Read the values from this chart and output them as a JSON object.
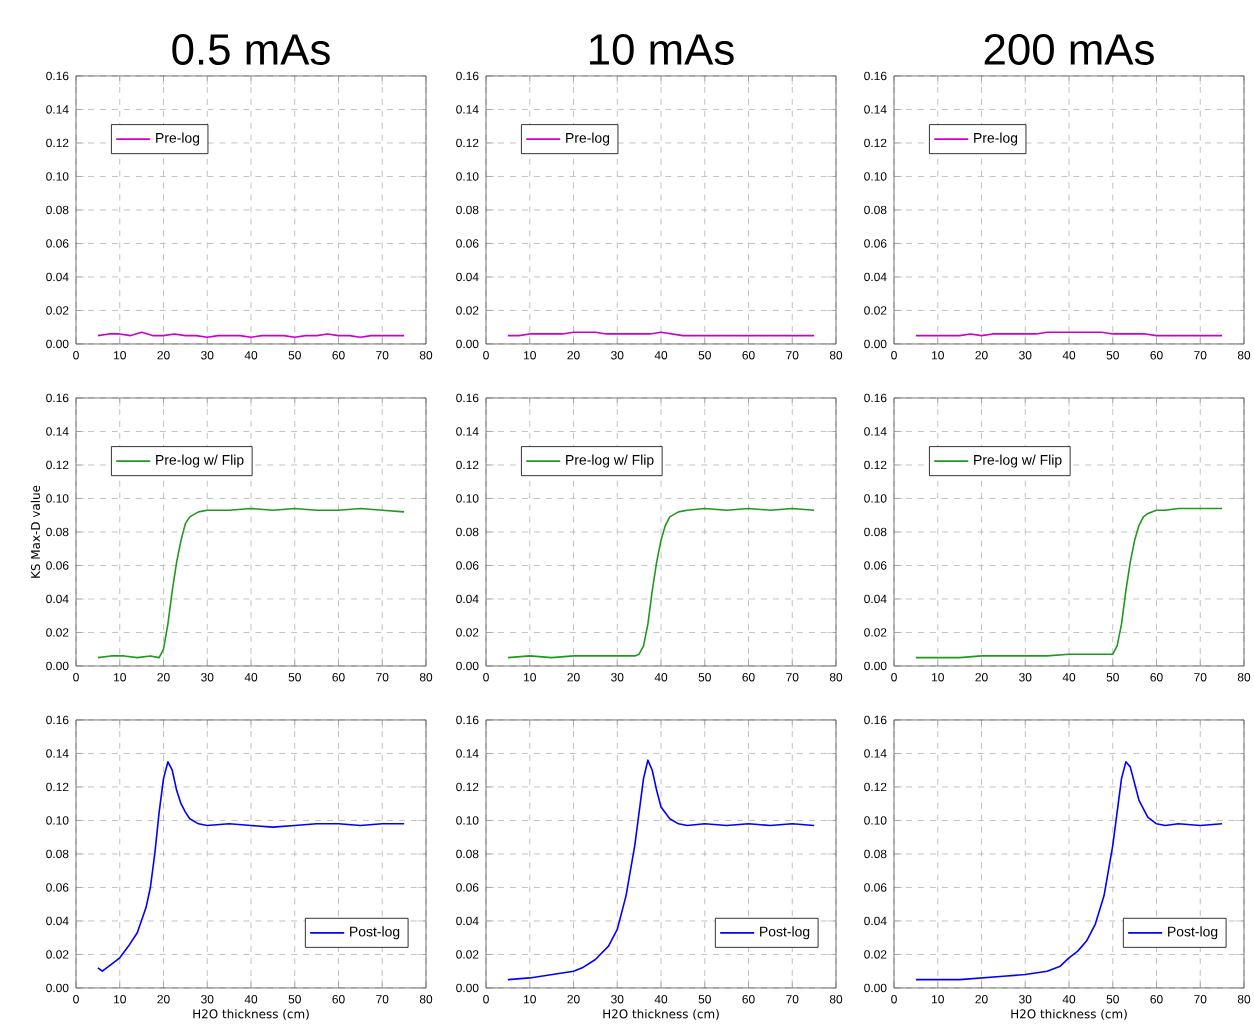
{
  "chart_data": [
    {
      "type": "line",
      "title": "0.5 mAs",
      "x": [
        5,
        7.5,
        10,
        12.5,
        15,
        17.5,
        20,
        22.5,
        25,
        27.5,
        30,
        32.5,
        35,
        37.5,
        40,
        42.5,
        45,
        47.5,
        50,
        52.5,
        55,
        57.5,
        60,
        62.5,
        65,
        67.5,
        70,
        72.5,
        75
      ],
      "series": [
        {
          "name": "Pre-log",
          "color": "#cc00cc",
          "values": [
            0.005,
            0.006,
            0.006,
            0.005,
            0.007,
            0.005,
            0.005,
            0.006,
            0.005,
            0.005,
            0.004,
            0.005,
            0.005,
            0.005,
            0.004,
            0.005,
            0.005,
            0.005,
            0.004,
            0.005,
            0.005,
            0.006,
            0.005,
            0.005,
            0.004,
            0.005,
            0.005,
            0.005,
            0.005
          ]
        }
      ],
      "xlim": [
        0,
        80
      ],
      "xticks": [
        0,
        10,
        20,
        30,
        40,
        50,
        60,
        70,
        80
      ],
      "ylim": [
        0,
        0.16
      ],
      "yticks": [
        {
          "value": 0,
          "label": "0.00"
        },
        {
          "value": 0.02,
          "label": "0.02"
        },
        {
          "value": 0.04,
          "label": "0.04"
        },
        {
          "value": 0.06,
          "label": "0.06"
        },
        {
          "value": 0.08,
          "label": "0.08"
        },
        {
          "value": 0.1,
          "label": "0.10"
        },
        {
          "value": 0.12,
          "label": "0.12"
        },
        {
          "value": 0.14,
          "label": "0.14"
        },
        {
          "value": 0.16,
          "label": "0.16"
        }
      ],
      "grid": true,
      "legend": "top left"
    },
    {
      "type": "line",
      "title": "10 mAs",
      "x": [
        5,
        7.5,
        10,
        12.5,
        15,
        17.5,
        20,
        22.5,
        25,
        27.5,
        30,
        32.5,
        35,
        37.5,
        40,
        42.5,
        45,
        47.5,
        50,
        52.5,
        55,
        57.5,
        60,
        62.5,
        65,
        67.5,
        70,
        72.5,
        75
      ],
      "series": [
        {
          "name": "Pre-log",
          "color": "#cc00cc",
          "values": [
            0.005,
            0.005,
            0.006,
            0.006,
            0.006,
            0.006,
            0.007,
            0.007,
            0.007,
            0.006,
            0.006,
            0.006,
            0.006,
            0.006,
            0.007,
            0.006,
            0.005,
            0.005,
            0.005,
            0.005,
            0.005,
            0.005,
            0.005,
            0.005,
            0.005,
            0.005,
            0.005,
            0.005,
            0.005
          ]
        }
      ],
      "xlim": [
        0,
        80
      ],
      "xticks": [
        0,
        10,
        20,
        30,
        40,
        50,
        60,
        70,
        80
      ],
      "ylim": [
        0,
        0.16
      ],
      "yticks": [
        {
          "value": 0,
          "label": "0.00"
        },
        {
          "value": 0.02,
          "label": "0.02"
        },
        {
          "value": 0.04,
          "label": "0.04"
        },
        {
          "value": 0.06,
          "label": "0.06"
        },
        {
          "value": 0.08,
          "label": "0.08"
        },
        {
          "value": 0.1,
          "label": "0.10"
        },
        {
          "value": 0.12,
          "label": "0.12"
        },
        {
          "value": 0.14,
          "label": "0.14"
        },
        {
          "value": 0.16,
          "label": "0.16"
        }
      ],
      "grid": true,
      "legend": "top left"
    },
    {
      "type": "line",
      "title": "200 mAs",
      "x": [
        5,
        7.5,
        10,
        12.5,
        15,
        17.5,
        20,
        22.5,
        25,
        27.5,
        30,
        32.5,
        35,
        37.5,
        40,
        42.5,
        45,
        47.5,
        50,
        52.5,
        55,
        57.5,
        60,
        62.5,
        65,
        67.5,
        70,
        72.5,
        75
      ],
      "series": [
        {
          "name": "Pre-log",
          "color": "#cc00cc",
          "values": [
            0.005,
            0.005,
            0.005,
            0.005,
            0.005,
            0.006,
            0.005,
            0.006,
            0.006,
            0.006,
            0.006,
            0.006,
            0.007,
            0.007,
            0.007,
            0.007,
            0.007,
            0.007,
            0.006,
            0.006,
            0.006,
            0.006,
            0.005,
            0.005,
            0.005,
            0.005,
            0.005,
            0.005,
            0.005
          ]
        }
      ],
      "xlim": [
        0,
        80
      ],
      "xticks": [
        0,
        10,
        20,
        30,
        40,
        50,
        60,
        70,
        80
      ],
      "ylim": [
        0,
        0.16
      ],
      "yticks": [
        {
          "value": 0,
          "label": "0.00"
        },
        {
          "value": 0.02,
          "label": "0.02"
        },
        {
          "value": 0.04,
          "label": "0.04"
        },
        {
          "value": 0.06,
          "label": "0.06"
        },
        {
          "value": 0.08,
          "label": "0.08"
        },
        {
          "value": 0.1,
          "label": "0.10"
        },
        {
          "value": 0.12,
          "label": "0.12"
        },
        {
          "value": 0.14,
          "label": "0.14"
        },
        {
          "value": 0.16,
          "label": "0.16"
        }
      ],
      "grid": true,
      "legend": "top left"
    },
    {
      "type": "line",
      "ylabel": "KS Max-D value",
      "x": [
        5,
        8,
        11,
        14,
        17,
        19,
        20,
        21,
        22,
        23,
        24,
        25,
        26,
        28,
        30,
        35,
        40,
        45,
        50,
        55,
        60,
        65,
        70,
        75
      ],
      "series": [
        {
          "name": "Pre-log w/ Flip",
          "color": "#1f9a1f",
          "values": [
            0.005,
            0.006,
            0.006,
            0.005,
            0.006,
            0.005,
            0.01,
            0.025,
            0.045,
            0.062,
            0.075,
            0.085,
            0.089,
            0.092,
            0.093,
            0.093,
            0.094,
            0.093,
            0.094,
            0.093,
            0.093,
            0.094,
            0.093,
            0.092
          ]
        }
      ],
      "xlim": [
        0,
        80
      ],
      "xticks": [
        0,
        10,
        20,
        30,
        40,
        50,
        60,
        70,
        80
      ],
      "ylim": [
        0,
        0.16
      ],
      "yticks": [
        {
          "value": 0,
          "label": "0.00"
        },
        {
          "value": 0.02,
          "label": "0.02"
        },
        {
          "value": 0.04,
          "label": "0.04"
        },
        {
          "value": 0.06,
          "label": "0.06"
        },
        {
          "value": 0.08,
          "label": "0.08"
        },
        {
          "value": 0.1,
          "label": "0.10"
        },
        {
          "value": 0.12,
          "label": "0.12"
        },
        {
          "value": 0.14,
          "label": "0.14"
        },
        {
          "value": 0.16,
          "label": "0.16"
        }
      ],
      "grid": true,
      "legend": "top left"
    },
    {
      "type": "line",
      "x": [
        5,
        10,
        15,
        20,
        25,
        30,
        34,
        35,
        36,
        37,
        38,
        39,
        40,
        41,
        42,
        44,
        46,
        50,
        55,
        60,
        65,
        70,
        75
      ],
      "series": [
        {
          "name": "Pre-log w/ Flip",
          "color": "#1f9a1f",
          "values": [
            0.005,
            0.006,
            0.005,
            0.006,
            0.006,
            0.006,
            0.006,
            0.007,
            0.012,
            0.025,
            0.045,
            0.062,
            0.075,
            0.084,
            0.089,
            0.092,
            0.093,
            0.094,
            0.093,
            0.094,
            0.093,
            0.094,
            0.093
          ]
        }
      ],
      "xlim": [
        0,
        80
      ],
      "xticks": [
        0,
        10,
        20,
        30,
        40,
        50,
        60,
        70,
        80
      ],
      "ylim": [
        0,
        0.16
      ],
      "yticks": [
        {
          "value": 0,
          "label": "0.00"
        },
        {
          "value": 0.02,
          "label": "0.02"
        },
        {
          "value": 0.04,
          "label": "0.04"
        },
        {
          "value": 0.06,
          "label": "0.06"
        },
        {
          "value": 0.08,
          "label": "0.08"
        },
        {
          "value": 0.1,
          "label": "0.10"
        },
        {
          "value": 0.12,
          "label": "0.12"
        },
        {
          "value": 0.14,
          "label": "0.14"
        },
        {
          "value": 0.16,
          "label": "0.16"
        }
      ],
      "grid": true,
      "legend": "top left"
    },
    {
      "type": "line",
      "x": [
        5,
        10,
        15,
        20,
        25,
        30,
        35,
        40,
        45,
        50,
        51,
        52,
        53,
        54,
        55,
        56,
        57,
        58,
        60,
        62,
        65,
        70,
        75
      ],
      "series": [
        {
          "name": "Pre-log w/ Flip",
          "color": "#1f9a1f",
          "values": [
            0.005,
            0.005,
            0.005,
            0.006,
            0.006,
            0.006,
            0.006,
            0.007,
            0.007,
            0.007,
            0.012,
            0.025,
            0.045,
            0.062,
            0.075,
            0.084,
            0.089,
            0.091,
            0.093,
            0.093,
            0.094,
            0.094,
            0.094
          ]
        }
      ],
      "xlim": [
        0,
        80
      ],
      "xticks": [
        0,
        10,
        20,
        30,
        40,
        50,
        60,
        70,
        80
      ],
      "ylim": [
        0,
        0.16
      ],
      "yticks": [
        {
          "value": 0,
          "label": "0.00"
        },
        {
          "value": 0.02,
          "label": "0.02"
        },
        {
          "value": 0.04,
          "label": "0.04"
        },
        {
          "value": 0.06,
          "label": "0.06"
        },
        {
          "value": 0.08,
          "label": "0.08"
        },
        {
          "value": 0.1,
          "label": "0.10"
        },
        {
          "value": 0.12,
          "label": "0.12"
        },
        {
          "value": 0.14,
          "label": "0.14"
        },
        {
          "value": 0.16,
          "label": "0.16"
        }
      ],
      "grid": true,
      "legend": "top left"
    },
    {
      "type": "line",
      "xlabel": "H2O thickness (cm)",
      "x": [
        5,
        6,
        8,
        10,
        12,
        14,
        16,
        17,
        18,
        19,
        20,
        21,
        22,
        23,
        24,
        25,
        26,
        28,
        30,
        35,
        40,
        45,
        50,
        55,
        60,
        65,
        70,
        75
      ],
      "series": [
        {
          "name": "Post-log",
          "color": "#0000ff",
          "values": [
            0.012,
            0.01,
            0.014,
            0.018,
            0.025,
            0.033,
            0.048,
            0.06,
            0.08,
            0.105,
            0.125,
            0.135,
            0.13,
            0.118,
            0.11,
            0.105,
            0.101,
            0.098,
            0.097,
            0.098,
            0.097,
            0.096,
            0.097,
            0.098,
            0.098,
            0.097,
            0.098,
            0.098
          ]
        }
      ],
      "xlim": [
        0,
        80
      ],
      "xticks": [
        0,
        10,
        20,
        30,
        40,
        50,
        60,
        70,
        80
      ],
      "ylim": [
        0,
        0.16
      ],
      "yticks": [
        {
          "value": 0,
          "label": "0.00"
        },
        {
          "value": 0.02,
          "label": "0.02"
        },
        {
          "value": 0.04,
          "label": "0.04"
        },
        {
          "value": 0.06,
          "label": "0.06"
        },
        {
          "value": 0.08,
          "label": "0.08"
        },
        {
          "value": 0.1,
          "label": "0.10"
        },
        {
          "value": 0.12,
          "label": "0.12"
        },
        {
          "value": 0.14,
          "label": "0.14"
        },
        {
          "value": 0.16,
          "label": "0.16"
        }
      ],
      "grid": true,
      "legend": "bottom right"
    },
    {
      "type": "line",
      "xlabel": "H2O thickness (cm)",
      "x": [
        5,
        10,
        15,
        20,
        22,
        25,
        28,
        30,
        32,
        34,
        35,
        36,
        37,
        38,
        39,
        40,
        42,
        44,
        46,
        50,
        55,
        60,
        65,
        70,
        75
      ],
      "series": [
        {
          "name": "Post-log",
          "color": "#0000ff",
          "values": [
            0.005,
            0.006,
            0.008,
            0.01,
            0.012,
            0.017,
            0.025,
            0.035,
            0.055,
            0.085,
            0.105,
            0.125,
            0.136,
            0.13,
            0.118,
            0.108,
            0.101,
            0.098,
            0.097,
            0.098,
            0.097,
            0.098,
            0.097,
            0.098,
            0.097
          ]
        }
      ],
      "xlim": [
        0,
        80
      ],
      "xticks": [
        0,
        10,
        20,
        30,
        40,
        50,
        60,
        70,
        80
      ],
      "ylim": [
        0,
        0.16
      ],
      "yticks": [
        {
          "value": 0,
          "label": "0.00"
        },
        {
          "value": 0.02,
          "label": "0.02"
        },
        {
          "value": 0.04,
          "label": "0.04"
        },
        {
          "value": 0.06,
          "label": "0.06"
        },
        {
          "value": 0.08,
          "label": "0.08"
        },
        {
          "value": 0.1,
          "label": "0.10"
        },
        {
          "value": 0.12,
          "label": "0.12"
        },
        {
          "value": 0.14,
          "label": "0.14"
        },
        {
          "value": 0.16,
          "label": "0.16"
        }
      ],
      "grid": true,
      "legend": "bottom right"
    },
    {
      "type": "line",
      "xlabel": "H2O thickness (cm)",
      "x": [
        5,
        10,
        15,
        20,
        25,
        30,
        35,
        38,
        40,
        42,
        44,
        46,
        48,
        50,
        51,
        52,
        53,
        54,
        55,
        56,
        58,
        60,
        62,
        65,
        70,
        75
      ],
      "series": [
        {
          "name": "Post-log",
          "color": "#0000ff",
          "values": [
            0.005,
            0.005,
            0.005,
            0.006,
            0.007,
            0.008,
            0.01,
            0.013,
            0.018,
            0.022,
            0.028,
            0.038,
            0.055,
            0.085,
            0.105,
            0.125,
            0.135,
            0.132,
            0.122,
            0.112,
            0.102,
            0.098,
            0.097,
            0.098,
            0.097,
            0.098
          ]
        }
      ],
      "xlim": [
        0,
        80
      ],
      "xticks": [
        0,
        10,
        20,
        30,
        40,
        50,
        60,
        70,
        80
      ],
      "ylim": [
        0,
        0.16
      ],
      "yticks": [
        {
          "value": 0,
          "label": "0.00"
        },
        {
          "value": 0.02,
          "label": "0.02"
        },
        {
          "value": 0.04,
          "label": "0.04"
        },
        {
          "value": 0.06,
          "label": "0.06"
        },
        {
          "value": 0.08,
          "label": "0.08"
        },
        {
          "value": 0.1,
          "label": "0.10"
        },
        {
          "value": 0.12,
          "label": "0.12"
        },
        {
          "value": 0.14,
          "label": "0.14"
        },
        {
          "value": 0.16,
          "label": "0.16"
        }
      ],
      "grid": true,
      "legend": "bottom right"
    }
  ]
}
